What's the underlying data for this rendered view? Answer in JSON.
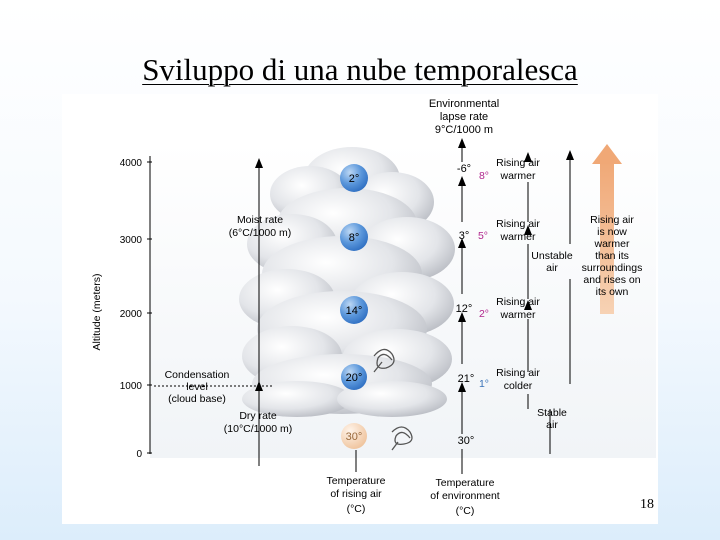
{
  "slide": {
    "title": "Sviluppo di una nube temporalesca",
    "page_number": "18"
  },
  "colors": {
    "bubble": "#4f8fd8",
    "warmer_diff": "#b0268c",
    "colder_diff": "#3a72b8",
    "rising_arrow": "#f3bc94",
    "bottom_bubble": "#f2cfae"
  },
  "diagram": {
    "environmental_lapse_rate": [
      "Environmental",
      "lapse rate",
      "9°C/1000 m"
    ],
    "altitude_axis": {
      "label": "Altitude (meters)",
      "ticks": [
        "4000",
        "3000",
        "2000",
        "1000",
        "0"
      ]
    },
    "moist_rate": [
      "Moist rate",
      "(6°C/1000 m)"
    ],
    "condensation_level": [
      "Condensation",
      "level",
      "(cloud base)"
    ],
    "dry_rate": [
      "Dry rate",
      "(10°C/1000 m)"
    ],
    "parcel_temps": [
      "2°",
      "8°",
      "14°",
      "20°",
      "30°"
    ],
    "env_temps": [
      "-6°",
      "3°",
      "12°",
      "21°",
      "30°"
    ],
    "diffs": [
      "8°",
      "5°",
      "2°",
      "1°"
    ],
    "comparisons": [
      [
        "Rising air",
        "warmer"
      ],
      [
        "Rising air",
        "warmer"
      ],
      [
        "Rising air",
        "warmer"
      ],
      [
        "Rising air",
        "colder"
      ]
    ],
    "unstable_air": [
      "Unstable",
      "air"
    ],
    "stable_air": [
      "Stable",
      "air"
    ],
    "rising_air_note": [
      "Rising air",
      "is now",
      "warmer",
      "than its",
      "surroundings",
      "and rises on",
      "its own"
    ],
    "temp_rising_air": [
      "Temperature",
      "of rising air",
      "(°C)"
    ],
    "temp_environment": [
      "Temperature",
      "of environment",
      "(°C)"
    ]
  }
}
